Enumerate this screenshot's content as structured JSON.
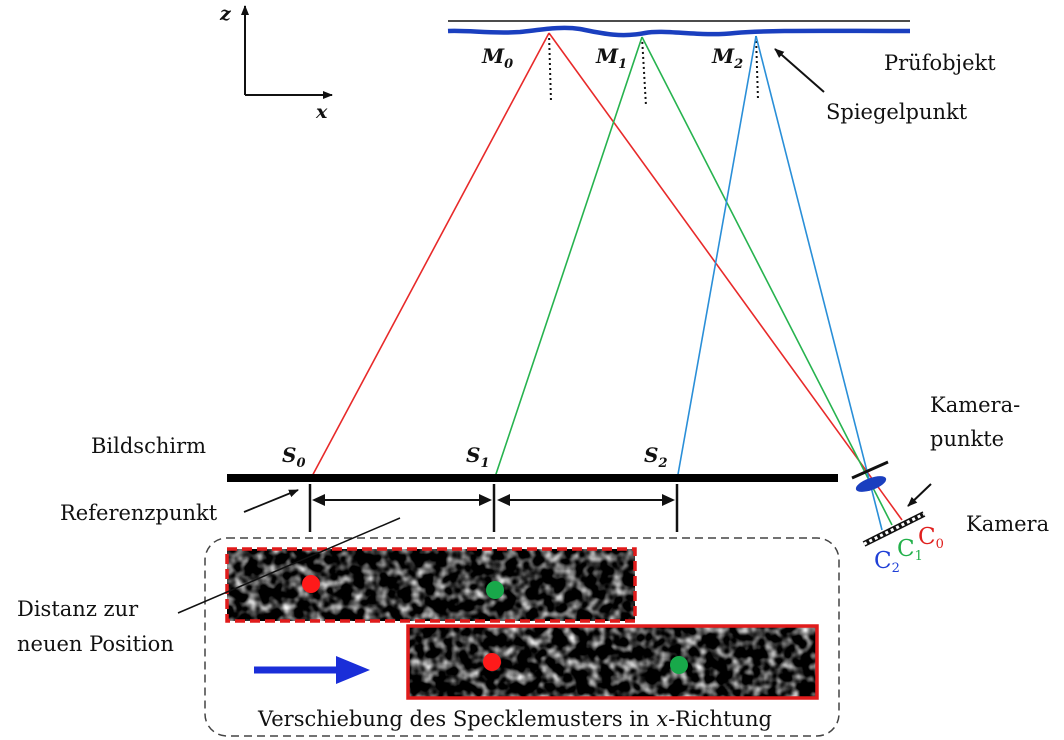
{
  "axes": {
    "z": "z",
    "x": "x"
  },
  "mirror_points": [
    {
      "base": "M",
      "sub": "0"
    },
    {
      "base": "M",
      "sub": "1"
    },
    {
      "base": "M",
      "sub": "2"
    }
  ],
  "screen_points": [
    {
      "base": "S",
      "sub": "0"
    },
    {
      "base": "S",
      "sub": "1"
    },
    {
      "base": "S",
      "sub": "2"
    }
  ],
  "camera_points": [
    {
      "base": "C",
      "sub": "2",
      "color": "#1f3fd6"
    },
    {
      "base": "C",
      "sub": "1",
      "color": "#22b04a"
    },
    {
      "base": "C",
      "sub": "0",
      "color": "#e0201e"
    }
  ],
  "labels": {
    "pruefobjekt": "Prüfobjekt",
    "spiegelpunkt": "Spiegelpunkt",
    "bildschirm": "Bildschirm",
    "referenzpunkt": "Referenzpunkt",
    "kamerapunkte_1": "Kamera-",
    "kamerapunkte_2": "punkte",
    "kamera": "Kamera",
    "distanz_1": "Distanz zur",
    "distanz_2": "neuen Position",
    "caption_pre": "Verschiebung des Specklemusters in ",
    "caption_x": "x",
    "caption_post": "-Richtung"
  },
  "colors": {
    "ray_0": "#e82a2a",
    "ray_1": "#27b34f",
    "ray_2": "#2a8fd8",
    "surface": "#1a3fbf",
    "arrow": "#1a2ed8",
    "frame": "#e01b1b",
    "dot_red": "#ff1a1a",
    "dot_green": "#18a84a"
  }
}
